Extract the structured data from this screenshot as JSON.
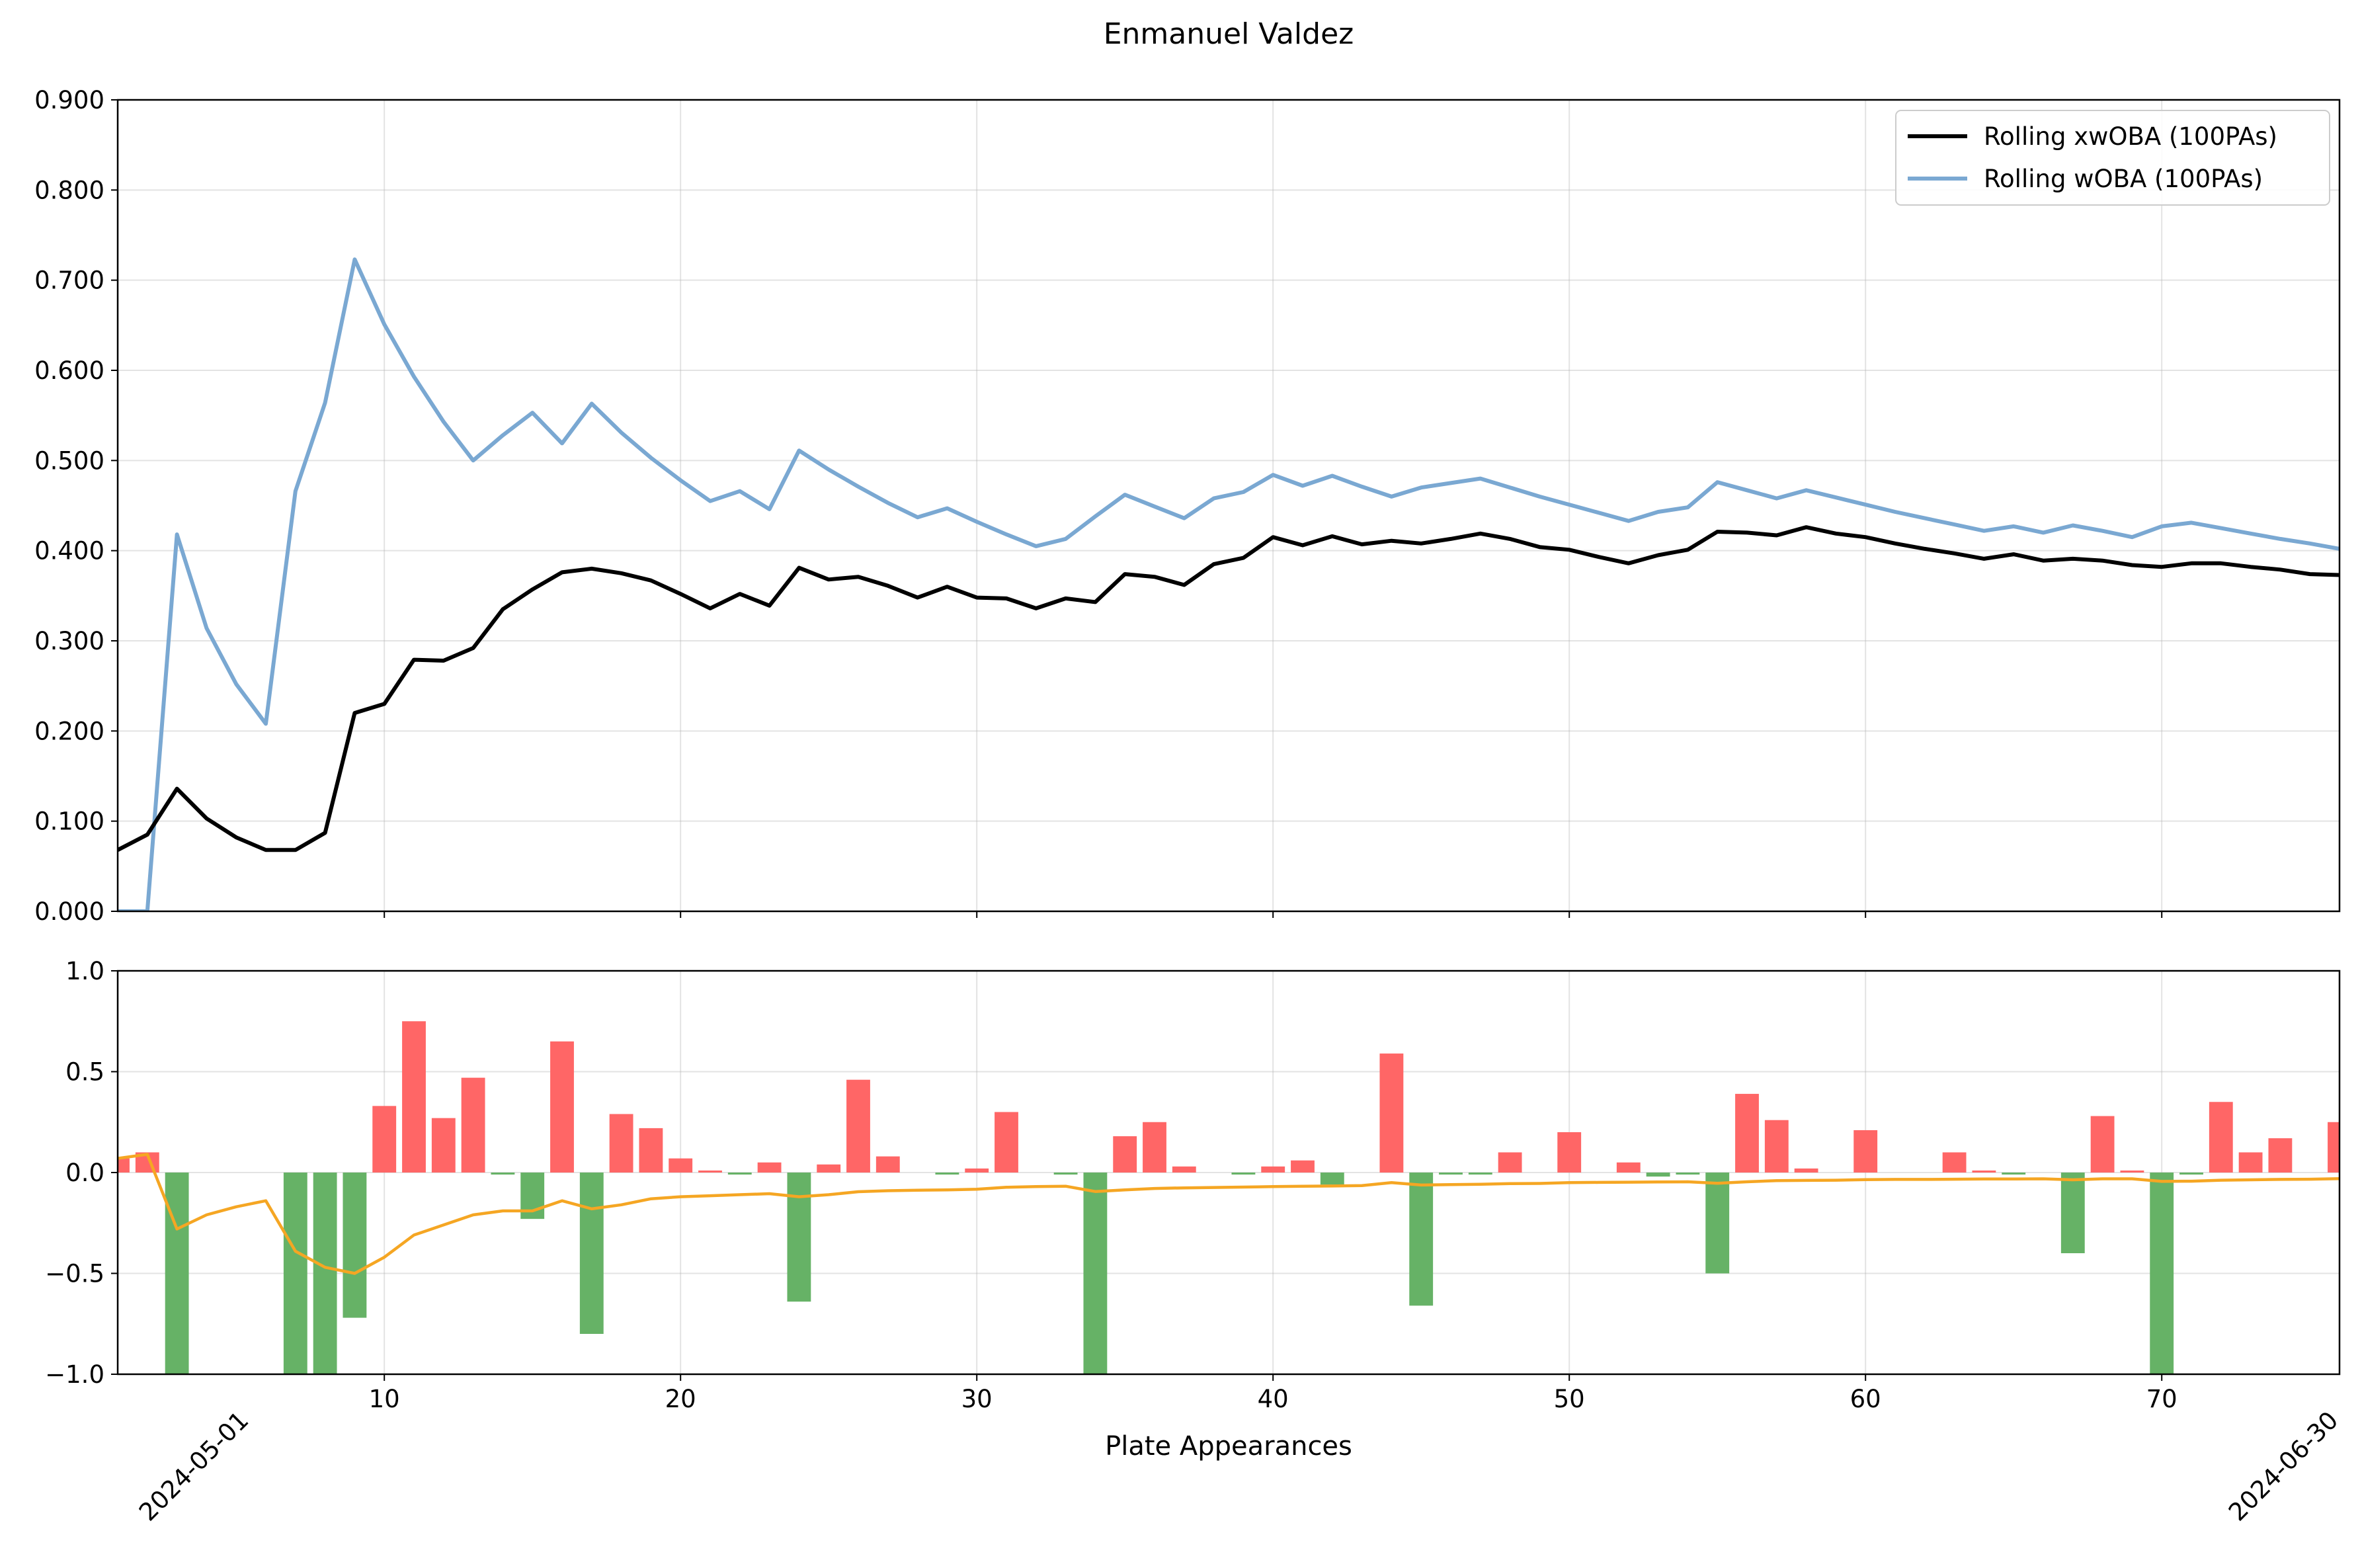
{
  "chart_data": {
    "type": "line",
    "title": "Enmanuel Valdez",
    "xlabel": "Plate Appearances",
    "x_range": [
      1,
      76
    ],
    "x_ticks": [
      10,
      20,
      30,
      40,
      50,
      60,
      70
    ],
    "date_labels": {
      "start": "2024-05-01",
      "end": "2024-06-30"
    },
    "grid": true,
    "legend_position": "top-right",
    "top_panel": {
      "ylim": [
        0,
        0.9
      ],
      "y_ticks": [
        "0.000",
        "0.100",
        "0.200",
        "0.300",
        "0.400",
        "0.500",
        "0.600",
        "0.700",
        "0.800",
        "0.900"
      ],
      "series": [
        {
          "name": "Rolling xwOBA (100PAs)",
          "color": "#000000",
          "values": [
            0.068,
            0.085,
            0.136,
            0.103,
            0.082,
            0.068,
            0.068,
            0.087,
            0.22,
            0.23,
            0.279,
            0.278,
            0.292,
            0.335,
            0.357,
            0.376,
            0.38,
            0.375,
            0.367,
            0.352,
            0.336,
            0.352,
            0.339,
            0.381,
            0.368,
            0.371,
            0.361,
            0.348,
            0.36,
            0.348,
            0.347,
            0.336,
            0.347,
            0.343,
            0.374,
            0.371,
            0.362,
            0.385,
            0.392,
            0.415,
            0.406,
            0.416,
            0.407,
            0.411,
            0.408,
            0.413,
            0.419,
            0.413,
            0.404,
            0.401,
            0.393,
            0.386,
            0.395,
            0.401,
            0.421,
            0.42,
            0.417,
            0.426,
            0.419,
            0.415,
            0.408,
            0.402,
            0.397,
            0.391,
            0.396,
            0.389,
            0.391,
            0.389,
            0.384,
            0.382,
            0.386,
            0.386,
            0.382,
            0.379,
            0.374,
            0.373
          ]
        },
        {
          "name": "Rolling wOBA (100PAs)",
          "color": "#7aa8d2",
          "values": [
            0.0,
            0.0,
            0.418,
            0.314,
            0.252,
            0.208,
            0.466,
            0.564,
            0.723,
            0.651,
            0.593,
            0.543,
            0.5,
            0.528,
            0.553,
            0.519,
            0.563,
            0.531,
            0.503,
            0.478,
            0.455,
            0.466,
            0.446,
            0.511,
            0.49,
            0.471,
            0.453,
            0.437,
            0.447,
            0.432,
            0.418,
            0.405,
            0.413,
            0.438,
            0.462,
            0.449,
            0.436,
            0.458,
            0.465,
            0.484,
            0.472,
            0.483,
            0.471,
            0.46,
            0.47,
            0.475,
            0.48,
            0.47,
            0.46,
            0.451,
            0.442,
            0.433,
            0.443,
            0.448,
            0.476,
            0.467,
            0.458,
            0.467,
            0.459,
            0.451,
            0.443,
            0.436,
            0.429,
            0.422,
            0.427,
            0.42,
            0.428,
            0.422,
            0.415,
            0.427,
            0.431,
            0.425,
            0.419,
            0.413,
            0.408,
            0.402
          ]
        }
      ]
    },
    "bottom_panel": {
      "ylim": [
        -1.0,
        1.0
      ],
      "y_ticks": [
        "−1.0",
        "−0.5",
        "0.0",
        "0.5",
        "1.0"
      ],
      "bar_series": {
        "positive_color": "#ff6666",
        "negative_color": "#66b266",
        "values": [
          0.07,
          0.1,
          -1.0,
          0.0,
          0.0,
          0.0,
          -1.0,
          -1.0,
          -0.72,
          0.33,
          0.75,
          0.27,
          0.47,
          -0.01,
          -0.23,
          0.65,
          -0.8,
          0.29,
          0.22,
          0.07,
          0.01,
          -0.01,
          0.05,
          -0.64,
          0.04,
          0.46,
          0.08,
          0.0,
          -0.01,
          0.02,
          0.3,
          0.0,
          -0.01,
          -1.0,
          0.18,
          0.25,
          0.03,
          0.0,
          -0.01,
          0.03,
          0.06,
          -0.06,
          0.0,
          0.59,
          -0.66,
          -0.01,
          -0.01,
          0.1,
          0.0,
          0.2,
          0.0,
          0.05,
          -0.02,
          -0.01,
          -0.5,
          0.39,
          0.26,
          0.02,
          0.0,
          0.21,
          0.0,
          0.0,
          0.1,
          0.01,
          -0.01,
          0.0,
          -0.4,
          0.28,
          0.01,
          -1.0,
          -0.01,
          0.35,
          0.1,
          0.17,
          0.0,
          0.25
        ]
      },
      "line_series": {
        "color": "#f5a623",
        "values": [
          0.07,
          0.09,
          -0.28,
          -0.21,
          -0.17,
          -0.14,
          -0.39,
          -0.47,
          -0.5,
          -0.42,
          -0.31,
          -0.26,
          -0.21,
          -0.19,
          -0.19,
          -0.14,
          -0.18,
          -0.16,
          -0.13,
          -0.12,
          -0.115,
          -0.11,
          -0.105,
          -0.12,
          -0.11,
          -0.095,
          -0.09,
          -0.088,
          -0.086,
          -0.083,
          -0.073,
          -0.07,
          -0.068,
          -0.094,
          -0.086,
          -0.079,
          -0.076,
          -0.074,
          -0.072,
          -0.07,
          -0.068,
          -0.067,
          -0.065,
          -0.05,
          -0.062,
          -0.06,
          -0.058,
          -0.055,
          -0.054,
          -0.05,
          -0.049,
          -0.048,
          -0.047,
          -0.046,
          -0.053,
          -0.046,
          -0.04,
          -0.039,
          -0.038,
          -0.035,
          -0.034,
          -0.034,
          -0.033,
          -0.032,
          -0.032,
          -0.031,
          -0.036,
          -0.031,
          -0.031,
          -0.044,
          -0.043,
          -0.038,
          -0.036,
          -0.034,
          -0.033,
          -0.03
        ]
      }
    }
  }
}
